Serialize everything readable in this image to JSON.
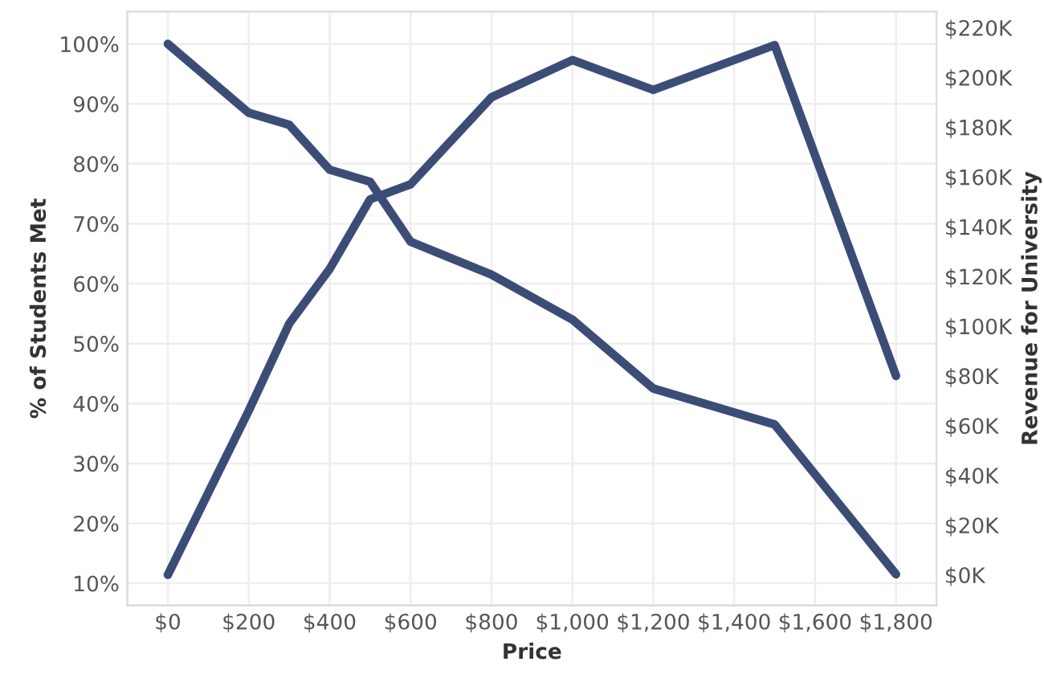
{
  "chart_data": {
    "type": "line",
    "xlabel": "Price",
    "ylabel": "% of Students Met",
    "y2label": "Revenue for University",
    "x": [
      0,
      200,
      300,
      400,
      500,
      600,
      800,
      1000,
      1200,
      1500,
      1800
    ],
    "series": [
      {
        "color": "#3b4d77",
        "values": [
          100,
          88.5,
          86.5,
          79,
          77,
          67,
          61.5,
          54,
          42.5,
          36.5,
          11.5
        ]
      },
      {
        "color": "#3b4d77",
        "axis": "y2",
        "values": [
          0,
          66000,
          101000,
          123000,
          151000,
          157000,
          192000,
          207000,
          195000,
          213000,
          80000
        ]
      }
    ],
    "xlim": [
      -100,
      1900
    ],
    "xticks": [
      {
        "value": 0,
        "label": "$0"
      },
      {
        "value": 200,
        "label": "$200"
      },
      {
        "value": 400,
        "label": "$400"
      },
      {
        "value": 600,
        "label": "$600"
      },
      {
        "value": 800,
        "label": "$800"
      },
      {
        "value": 1000,
        "label": "$1,000"
      },
      {
        "value": 1200,
        "label": "$1,200"
      },
      {
        "value": 1400,
        "label": "$1,400"
      },
      {
        "value": 1600,
        "label": "$1,600"
      },
      {
        "value": 1800,
        "label": "$1,800"
      }
    ],
    "ylim": [
      6.3,
      105.4
    ],
    "yticks": [
      {
        "value": 10,
        "label": "10%"
      },
      {
        "value": 20,
        "label": "20%"
      },
      {
        "value": 30,
        "label": "30%"
      },
      {
        "value": 40,
        "label": "40%"
      },
      {
        "value": 50,
        "label": "50%"
      },
      {
        "value": 60,
        "label": "60%"
      },
      {
        "value": 70,
        "label": "70%"
      },
      {
        "value": 80,
        "label": "80%"
      },
      {
        "value": 90,
        "label": "90%"
      },
      {
        "value": 100,
        "label": "100%"
      }
    ],
    "y2lim": [
      -12300,
      226500
    ],
    "y2ticks": [
      {
        "value": 0,
        "label": "$0K"
      },
      {
        "value": 20000,
        "label": "$20K"
      },
      {
        "value": 40000,
        "label": "$40K"
      },
      {
        "value": 60000,
        "label": "$60K"
      },
      {
        "value": 80000,
        "label": "$80K"
      },
      {
        "value": 100000,
        "label": "$100K"
      },
      {
        "value": 120000,
        "label": "$120K"
      },
      {
        "value": 140000,
        "label": "$140K"
      },
      {
        "value": 160000,
        "label": "$160K"
      },
      {
        "value": 180000,
        "label": "$180K"
      },
      {
        "value": 200000,
        "label": "$200K"
      },
      {
        "value": 220000,
        "label": "$220K"
      }
    ],
    "grid": true,
    "marker": "none",
    "line_style": "solid"
  }
}
